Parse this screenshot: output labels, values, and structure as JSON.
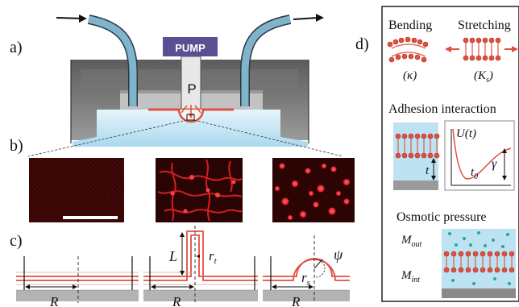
{
  "panels": {
    "a": "a)",
    "b": "b)",
    "c": "c)",
    "d": "d)"
  },
  "setup": {
    "pump_label": "PUMP",
    "pressure_label": "P"
  },
  "geometry_labels": {
    "R1": "R",
    "R2": "R",
    "R3": "R",
    "L": "L",
    "rt": "r",
    "rt_sub": "t",
    "rs": "r",
    "rs_sub": "s",
    "psi": "ψ"
  },
  "mechanics": {
    "bending_title": "Bending",
    "bending_symbol": "(κ)",
    "stretching_title": "Stretching",
    "stretching_symbol": "(K",
    "stretching_sub": "s",
    "stretching_close": ")",
    "adhesion_title": "Adhesion interaction",
    "potential_label": "U(t)",
    "t_label": "t",
    "t0_label": "t",
    "t0_sub": "0",
    "gamma_label": "γ",
    "osmotic_title": "Osmotic pressure",
    "m_out": "M",
    "m_out_sub": "out",
    "m_int": "M",
    "m_int_sub": "int"
  },
  "colors": {
    "membrane": "#e05040",
    "tube": "#7fb4cc",
    "liquid": "#bde3f3",
    "pump": "#5a4f92",
    "fluorescence": "#d81818",
    "solute": "#2aa890"
  }
}
